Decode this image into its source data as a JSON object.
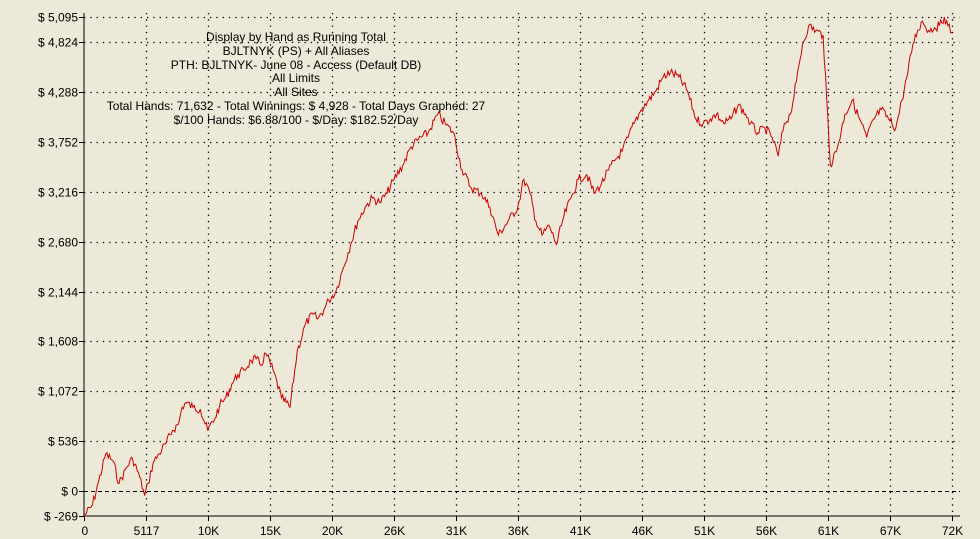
{
  "chart_data": {
    "type": "line",
    "info_lines": [
      "Display by Hand as Running Total",
      "BJLTNYK (PS) + All Aliases",
      "PTH: BJLTNYK- June 08 - Access (Default DB)",
      "All Limits",
      "All Sites",
      "Total Hands: 71,632 - Total Winnings: $ 4,928 - Total Days Graphed: 27",
      "$/100 Hands: $6.88/100 - $/Day: $182.52/Day"
    ],
    "y_ticks": [
      -269,
      0,
      536,
      1072,
      1608,
      2144,
      2680,
      3216,
      3752,
      4288,
      4824,
      5095
    ],
    "y_tick_labels": [
      "$ -269",
      "$ 0",
      "$ 536",
      "$ 1,072",
      "$ 1,608",
      "$ 2,144",
      "$ 2,680",
      "$ 3,216",
      "$ 3,752",
      "$ 4,288",
      "$ 4,824",
      "$ 5,095"
    ],
    "x_ticks": [
      0,
      5117,
      10234,
      15351,
      20468,
      25585,
      30702,
      35819,
      40936,
      46053,
      51170,
      56287,
      61404,
      66521,
      71638
    ],
    "x_tick_labels": [
      "0",
      "5117",
      "10K",
      "15K",
      "20K",
      "26K",
      "31K",
      "36K",
      "41K",
      "46K",
      "51K",
      "56K",
      "61K",
      "67K",
      "72K"
    ],
    "ylim": [
      -269,
      5095
    ],
    "xlim": [
      0,
      71632
    ],
    "grid": true,
    "line_color": "#cc0000",
    "series": [
      {
        "x": [
          0,
          700,
          1200,
          1800,
          2400,
          2900,
          3500,
          4000,
          4600,
          5000,
          5300,
          5700,
          6200,
          6800,
          7300,
          7800,
          8100,
          8400,
          9000,
          9600,
          10200,
          10800,
          11200,
          11700,
          12200,
          12700,
          13200,
          13800,
          14200,
          14600,
          15000,
          15600,
          16300,
          17000,
          17600,
          18300,
          18900,
          19300,
          19800,
          20200,
          20800,
          21400,
          22000,
          22600,
          23200,
          23800,
          24400,
          25000,
          25600,
          26300,
          27000,
          27600,
          28400,
          29200,
          29800,
          30500,
          31200,
          32000,
          32800,
          33500,
          34200,
          35000,
          35800,
          36300,
          36800,
          37300,
          37800,
          38400,
          39000,
          39600,
          40200,
          40800,
          41500,
          42100,
          42700,
          43300,
          43800,
          44400,
          44900,
          45400,
          46000,
          46600,
          47200,
          47800,
          48400,
          49100,
          49800,
          50500,
          51100,
          51700,
          52200,
          52800,
          53400,
          54000,
          54600,
          55000,
          55600,
          56200,
          56800,
          57300,
          57800,
          58300,
          58800,
          59300,
          59800,
          60400,
          61000,
          61600,
          62200,
          62800,
          63400,
          64000,
          64600,
          65200,
          65800,
          66400,
          67000,
          67500,
          68000,
          68400,
          68800,
          69200,
          69700,
          70200,
          70600,
          71000,
          71300,
          71632
        ],
        "y": [
          -269,
          -150,
          100,
          400,
          320,
          80,
          250,
          350,
          150,
          -50,
          80,
          300,
          400,
          520,
          650,
          720,
          900,
          950,
          900,
          880,
          650,
          780,
          920,
          1000,
          1150,
          1250,
          1300,
          1400,
          1420,
          1350,
          1480,
          1300,
          1000,
          900,
          1500,
          1800,
          1900,
          1850,
          1950,
          2050,
          2150,
          2400,
          2650,
          2900,
          3050,
          3150,
          3100,
          3200,
          3350,
          3500,
          3700,
          3780,
          3850,
          4050,
          3950,
          3850,
          3450,
          3250,
          3200,
          3050,
          2750,
          2900,
          3050,
          3350,
          3200,
          2900,
          2750,
          2850,
          2650,
          2950,
          3150,
          3350,
          3400,
          3200,
          3300,
          3450,
          3550,
          3650,
          3800,
          3950,
          4100,
          4200,
          4300,
          4450,
          4500,
          4450,
          4300,
          4000,
          3950,
          4000,
          4050,
          3950,
          4000,
          4150,
          4050,
          3950,
          3850,
          3900,
          3800,
          3600,
          3950,
          4050,
          4400,
          4800,
          5000,
          4950,
          4900,
          3500,
          3700,
          4050,
          4200,
          4000,
          3800,
          4000,
          4100,
          4000,
          3900,
          4200,
          4500,
          4800,
          4950,
          5050,
          4950,
          4980,
          5000,
          5095,
          5000,
          4928
        ]
      }
    ]
  }
}
